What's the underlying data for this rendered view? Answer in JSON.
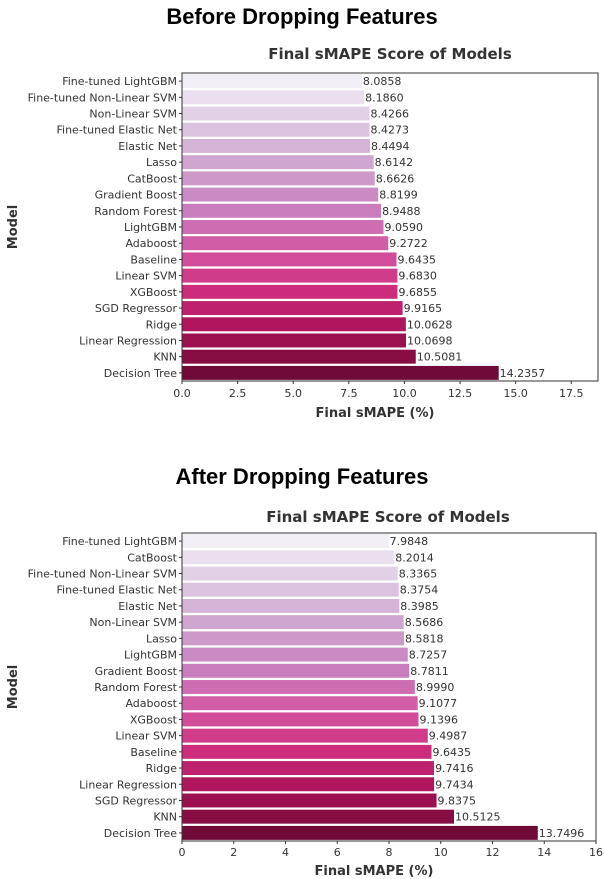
{
  "headings": {
    "before": "Before Dropping Features",
    "after": "After Dropping Features"
  },
  "chart_data": [
    {
      "type": "bar",
      "orientation": "horizontal",
      "title": "Final sMAPE Score of Models",
      "xlabel": "Final sMAPE (%)",
      "ylabel": "Model",
      "xlim": [
        0,
        18.7
      ],
      "xticks": [
        "0.0",
        "2.5",
        "5.0",
        "7.5",
        "10.0",
        "12.5",
        "15.0",
        "17.5"
      ],
      "xtick_values": [
        0,
        2.5,
        5,
        7.5,
        10,
        12.5,
        15,
        17.5
      ],
      "grid": false,
      "colormap": "RdPu",
      "categories": [
        "Fine-tuned LightGBM",
        "Fine-tuned Non-Linear SVM",
        "Non-Linear SVM",
        "Fine-tuned Elastic Net",
        "Elastic Net",
        "Lasso",
        "CatBoost",
        "Gradient Boost",
        "Random Forest",
        "LightGBM",
        "Adaboost",
        "Baseline",
        "Linear SVM",
        "XGBoost",
        "SGD Regressor",
        "Ridge",
        "Linear Regression",
        "KNN",
        "Decision Tree"
      ],
      "values": [
        8.0858,
        8.186,
        8.4266,
        8.4273,
        8.4494,
        8.6142,
        8.6626,
        8.8199,
        8.9488,
        9.059,
        9.2722,
        9.6435,
        9.683,
        9.6855,
        9.9165,
        10.0628,
        10.0698,
        10.5081,
        14.2357
      ],
      "value_labels": [
        "8.0858",
        "8.1860",
        "8.4266",
        "8.4273",
        "8.4494",
        "8.6142",
        "8.6626",
        "8.8199",
        "8.9488",
        "9.0590",
        "9.2722",
        "9.6435",
        "9.6830",
        "9.6855",
        "9.9165",
        "10.0628",
        "10.0698",
        "10.5081",
        "14.2357"
      ]
    },
    {
      "type": "bar",
      "orientation": "horizontal",
      "title": "Final sMAPE Score of Models",
      "xlabel": "Final sMAPE (%)",
      "ylabel": "Model",
      "xlim": [
        0,
        16
      ],
      "xticks": [
        "0",
        "2",
        "4",
        "6",
        "8",
        "10",
        "12",
        "14",
        "16"
      ],
      "xtick_values": [
        0,
        2,
        4,
        6,
        8,
        10,
        12,
        14,
        16
      ],
      "grid": false,
      "colormap": "RdPu",
      "categories": [
        "Fine-tuned LightGBM",
        "CatBoost",
        "Fine-tuned Non-Linear SVM",
        "Fine-tuned Elastic Net",
        "Elastic Net",
        "Non-Linear SVM",
        "Lasso",
        "LightGBM",
        "Gradient Boost",
        "Random Forest",
        "Adaboost",
        "XGBoost",
        "Linear SVM",
        "Baseline",
        "Ridge",
        "Linear Regression",
        "SGD Regressor",
        "KNN",
        "Decision Tree"
      ],
      "values": [
        7.9848,
        8.2014,
        8.3365,
        8.3754,
        8.3985,
        8.5686,
        8.5818,
        8.7257,
        8.7811,
        8.999,
        9.1077,
        9.1396,
        9.4987,
        9.6435,
        9.7416,
        9.7434,
        9.8375,
        10.5125,
        13.7496
      ],
      "value_labels": [
        "7.9848",
        "8.2014",
        "8.3365",
        "8.3754",
        "8.3985",
        "8.5686",
        "8.5818",
        "8.7257",
        "8.7811",
        "8.9990",
        "9.1077",
        "9.1396",
        "9.4987",
        "9.6435",
        "9.7416",
        "9.7434",
        "9.8375",
        "10.5125",
        "13.7496"
      ]
    }
  ]
}
